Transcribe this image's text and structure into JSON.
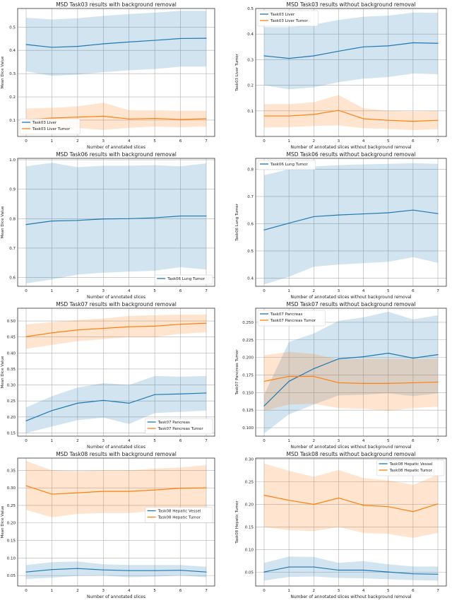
{
  "colors": {
    "blue": "#1f77b4",
    "orange": "#ff7f0e",
    "blue_band": "#1f77b4",
    "orange_band": "#ff7f0e",
    "grid": "#b0b0b0"
  },
  "chart_data": [
    {
      "type": "line",
      "title": "MSD Task03 results with background removal",
      "xlabel": "Number of annotated slices",
      "ylabel": "Mean Dice Value",
      "x": [
        0,
        1,
        2,
        3,
        4,
        5,
        6,
        7
      ],
      "ylim": [
        0.03,
        0.58
      ],
      "yticks": [
        "0.1",
        "0.2",
        "0.3",
        "0.4",
        "0.5"
      ],
      "xticks": [
        "0",
        "1",
        "2",
        "3",
        "4",
        "5",
        "6",
        "7"
      ],
      "grid": true,
      "legend": "lower-left",
      "series": [
        {
          "name": "Task03 Liver",
          "color": "blue",
          "values": [
            0.425,
            0.413,
            0.417,
            0.428,
            0.436,
            0.443,
            0.451,
            0.452
          ],
          "upper": [
            0.54,
            0.533,
            0.538,
            0.548,
            0.556,
            0.562,
            0.57,
            0.57
          ],
          "lower": [
            0.31,
            0.29,
            0.296,
            0.306,
            0.314,
            0.32,
            0.33,
            0.33
          ]
        },
        {
          "name": "Task03 Liver Tumor",
          "color": "orange",
          "values": [
            0.102,
            0.109,
            0.113,
            0.117,
            0.105,
            0.107,
            0.103,
            0.106
          ],
          "upper": [
            0.15,
            0.153,
            0.159,
            0.175,
            0.143,
            0.143,
            0.14,
            0.14
          ],
          "lower": [
            0.055,
            0.062,
            0.066,
            0.058,
            0.067,
            0.072,
            0.069,
            0.073
          ]
        }
      ]
    },
    {
      "type": "line",
      "title": "MSD Task03 results without background removal",
      "xlabel": "Number of annotated slices without background removal",
      "ylabel": "Task03 Liver Tumor",
      "x": [
        0,
        1,
        2,
        3,
        4,
        5,
        6,
        7
      ],
      "ylim": [
        0.0,
        0.5
      ],
      "yticks": [
        "0.1",
        "0.2",
        "0.3",
        "0.4",
        "0.5"
      ],
      "xticks": [
        "0",
        "1",
        "2",
        "3",
        "4",
        "5",
        "6",
        "7"
      ],
      "grid": true,
      "legend": "upper-left",
      "series": [
        {
          "name": "Task03 Liver",
          "color": "blue",
          "values": [
            0.315,
            0.305,
            0.315,
            0.333,
            0.35,
            0.354,
            0.366,
            0.364
          ],
          "upper": [
            0.427,
            0.427,
            0.437,
            0.455,
            0.468,
            0.472,
            0.484,
            0.483
          ],
          "lower": [
            0.2,
            0.184,
            0.192,
            0.212,
            0.226,
            0.232,
            0.246,
            0.243
          ]
        },
        {
          "name": "Task03 Liver Tumor",
          "color": "orange",
          "values": [
            0.08,
            0.08,
            0.086,
            0.102,
            0.069,
            0.063,
            0.059,
            0.063
          ],
          "upper": [
            0.126,
            0.126,
            0.134,
            0.162,
            0.11,
            0.1,
            0.097,
            0.1
          ],
          "lower": [
            0.035,
            0.036,
            0.041,
            0.043,
            0.032,
            0.029,
            0.025,
            0.028
          ]
        }
      ]
    },
    {
      "type": "line",
      "title": "MSD Task06 results with background removal",
      "xlabel": "Number of annotated slices",
      "ylabel": "Mean Dice Value",
      "x": [
        0,
        1,
        2,
        3,
        4,
        5,
        6,
        7
      ],
      "ylim": [
        0.57,
        1.005
      ],
      "yticks": [
        "0.6",
        "0.7",
        "0.8",
        "0.9",
        "1.0"
      ],
      "xticks": [
        "0",
        "1",
        "2",
        "3",
        "4",
        "5",
        "6",
        "7"
      ],
      "grid": true,
      "legend": "lower-right",
      "series": [
        {
          "name": "Task06 Lung Tumor",
          "color": "blue",
          "values": [
            0.78,
            0.792,
            0.794,
            0.799,
            0.8,
            0.803,
            0.809,
            0.809
          ],
          "upper": [
            0.978,
            0.99,
            0.975,
            0.98,
            0.98,
            0.982,
            0.978,
            0.988
          ],
          "lower": [
            0.58,
            0.593,
            0.61,
            0.616,
            0.62,
            0.623,
            0.635,
            0.627
          ]
        }
      ]
    },
    {
      "type": "line",
      "title": "MSD Task06 results without background removal",
      "xlabel": "Number of annotated slices without background removal",
      "ylabel": "Task06 Lung Tumor",
      "x": [
        0,
        1,
        2,
        3,
        4,
        5,
        6,
        7
      ],
      "ylim": [
        0.37,
        0.84
      ],
      "yticks": [
        "0.4",
        "0.5",
        "0.6",
        "0.7",
        "0.8"
      ],
      "xticks": [
        "0",
        "1",
        "2",
        "3",
        "4",
        "5",
        "6",
        "7"
      ],
      "grid": true,
      "legend": "upper-left",
      "series": [
        {
          "name": "Task06 Lung Tumor",
          "color": "blue",
          "values": [
            0.577,
            0.602,
            0.626,
            0.632,
            0.636,
            0.64,
            0.65,
            0.637
          ],
          "upper": [
            0.778,
            0.8,
            0.81,
            0.815,
            0.818,
            0.82,
            0.822,
            0.82
          ],
          "lower": [
            0.377,
            0.405,
            0.442,
            0.45,
            0.455,
            0.46,
            0.477,
            0.456
          ]
        }
      ]
    },
    {
      "type": "line",
      "title": "MSD Task07 results with background removal",
      "xlabel": "Number of annotated slices",
      "ylabel": "Mean Dice Value",
      "x": [
        0,
        1,
        2,
        3,
        4,
        5,
        6,
        7
      ],
      "ylim": [
        0.14,
        0.54
      ],
      "yticks": [
        "0.15",
        "0.20",
        "0.25",
        "0.30",
        "0.35",
        "0.40",
        "0.45",
        "0.50"
      ],
      "xticks": [
        "0",
        "1",
        "2",
        "3",
        "4",
        "5",
        "6",
        "7"
      ],
      "grid": true,
      "legend": "lower-right",
      "series": [
        {
          "name": "Task07 Pancreas",
          "color": "blue",
          "values": [
            0.188,
            0.22,
            0.243,
            0.252,
            0.243,
            0.27,
            0.272,
            0.275
          ],
          "upper": [
            0.23,
            0.265,
            0.292,
            0.306,
            0.3,
            0.328,
            0.326,
            0.328
          ],
          "lower": [
            0.15,
            0.17,
            0.19,
            0.198,
            0.178,
            0.212,
            0.216,
            0.22
          ]
        },
        {
          "name": "Task07 Pancreas Tumor",
          "color": "orange",
          "values": [
            0.451,
            0.463,
            0.472,
            0.477,
            0.482,
            0.484,
            0.49,
            0.493
          ],
          "upper": [
            0.489,
            0.497,
            0.503,
            0.508,
            0.516,
            0.518,
            0.52,
            0.52
          ],
          "lower": [
            0.413,
            0.425,
            0.437,
            0.443,
            0.45,
            0.45,
            0.46,
            0.465
          ]
        }
      ]
    },
    {
      "type": "line",
      "title": "MSD Task07 results without background removal",
      "xlabel": "Number of annotated slices without background removal",
      "ylabel": "Task07 Pancreas Tumor",
      "x": [
        0,
        1,
        2,
        3,
        4,
        5,
        6,
        7
      ],
      "ylim": [
        0.088,
        0.27
      ],
      "yticks": [
        "0.100",
        "0.125",
        "0.150",
        "0.175",
        "0.200",
        "0.225",
        "0.250"
      ],
      "xticks": [
        "0",
        "1",
        "2",
        "3",
        "4",
        "5",
        "6",
        "7"
      ],
      "grid": true,
      "legend": "upper-left",
      "series": [
        {
          "name": "Task07 Pancreas",
          "color": "blue",
          "values": [
            0.131,
            0.166,
            0.184,
            0.198,
            0.201,
            0.206,
            0.199,
            0.204
          ],
          "upper": [
            0.147,
            0.222,
            0.234,
            0.252,
            0.257,
            0.265,
            0.254,
            0.26
          ],
          "lower": [
            0.092,
            0.119,
            0.133,
            0.146,
            0.147,
            0.149,
            0.145,
            0.149
          ]
        },
        {
          "name": "Task07 Pancreas Tumor",
          "color": "orange",
          "values": [
            0.166,
            0.173,
            0.173,
            0.164,
            0.163,
            0.163,
            0.164,
            0.165
          ],
          "upper": [
            0.203,
            0.208,
            0.205,
            0.197,
            0.198,
            0.198,
            0.198,
            0.198
          ],
          "lower": [
            0.124,
            0.133,
            0.134,
            0.128,
            0.127,
            0.124,
            0.128,
            0.13
          ]
        }
      ]
    },
    {
      "type": "line",
      "title": "MSD Task08 results with background removal",
      "xlabel": "Number of annotated slices",
      "ylabel": "Mean Dice Value",
      "x": [
        0,
        1,
        2,
        3,
        4,
        5,
        6,
        7
      ],
      "ylim": [
        0.02,
        0.385
      ],
      "yticks": [
        "0.05",
        "0.10",
        "0.15",
        "0.20",
        "0.25",
        "0.30",
        "0.35"
      ],
      "xticks": [
        "0",
        "1",
        "2",
        "3",
        "4",
        "5",
        "6",
        "7"
      ],
      "grid": true,
      "legend": "center-right",
      "series": [
        {
          "name": "Task08 Hepatic Vessel",
          "color": "blue",
          "values": [
            0.06,
            0.067,
            0.07,
            0.066,
            0.064,
            0.064,
            0.065,
            0.06
          ],
          "upper": [
            0.08,
            0.088,
            0.09,
            0.082,
            0.08,
            0.08,
            0.08,
            0.075
          ],
          "lower": [
            0.04,
            0.044,
            0.049,
            0.05,
            0.045,
            0.047,
            0.05,
            0.045
          ]
        },
        {
          "name": "Task08 Hepatic Tumor",
          "color": "orange",
          "values": [
            0.306,
            0.282,
            0.286,
            0.29,
            0.29,
            0.294,
            0.299,
            0.3
          ],
          "upper": [
            0.377,
            0.35,
            0.348,
            0.35,
            0.35,
            0.355,
            0.358,
            0.365
          ],
          "lower": [
            0.237,
            0.216,
            0.226,
            0.228,
            0.228,
            0.235,
            0.239,
            0.236
          ]
        }
      ]
    },
    {
      "type": "line",
      "title": "MSD Task08 results without background removal",
      "xlabel": "Number of annotated slices without background removal",
      "ylabel": "Task08 Hepatic Tumor",
      "x": [
        0,
        1,
        2,
        3,
        4,
        5,
        6,
        7
      ],
      "ylim": [
        0.02,
        0.302
      ],
      "yticks": [
        "0.05",
        "0.10",
        "0.15",
        "0.20",
        "0.25",
        "0.30"
      ],
      "xticks": [
        "0",
        "1",
        "2",
        "3",
        "4",
        "5",
        "6",
        "7"
      ],
      "grid": true,
      "legend": "upper-right",
      "series": [
        {
          "name": "Task08 Hepatic Vessel",
          "color": "blue",
          "values": [
            0.051,
            0.062,
            0.062,
            0.055,
            0.055,
            0.051,
            0.047,
            0.046
          ],
          "upper": [
            0.071,
            0.085,
            0.084,
            0.071,
            0.075,
            0.068,
            0.063,
            0.063
          ],
          "lower": [
            0.032,
            0.04,
            0.041,
            0.038,
            0.037,
            0.035,
            0.033,
            0.032
          ]
        },
        {
          "name": "Task08 Hepatic Tumor",
          "color": "orange",
          "values": [
            0.22,
            0.209,
            0.2,
            0.214,
            0.198,
            0.195,
            0.184,
            0.201
          ],
          "upper": [
            0.29,
            0.274,
            0.261,
            0.276,
            0.258,
            0.253,
            0.243,
            0.266
          ],
          "lower": [
            0.15,
            0.143,
            0.141,
            0.15,
            0.137,
            0.135,
            0.126,
            0.137
          ]
        }
      ]
    }
  ]
}
